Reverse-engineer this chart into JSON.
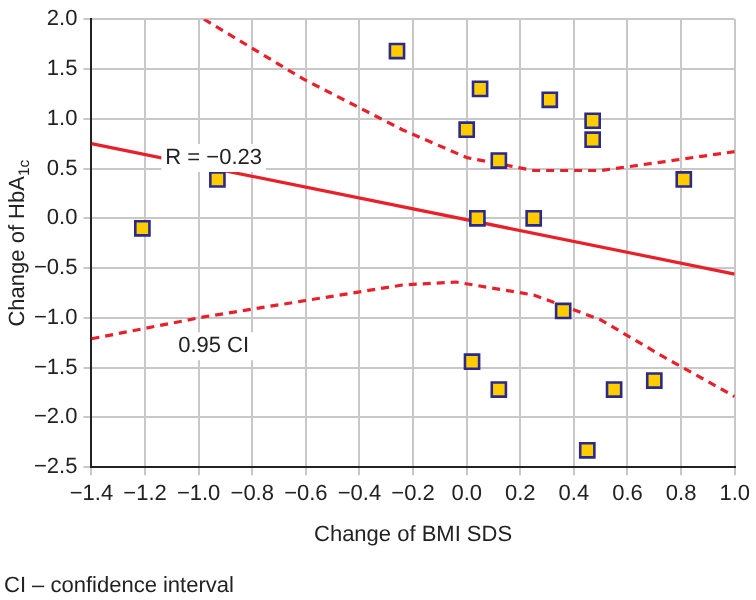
{
  "chart_data": {
    "type": "scatter",
    "xlabel": "Change of BMI SDS",
    "ylabel": "Change of HbA$_{1c}$",
    "xlim": [
      -1.4,
      1.0
    ],
    "xticks": [
      {
        "value": -1.4,
        "label": "−1.4"
      },
      {
        "value": -1.2,
        "label": "−1.2"
      },
      {
        "value": -1.0,
        "label": "−1.0"
      },
      {
        "value": -0.8,
        "label": "−0.8"
      },
      {
        "value": -0.6,
        "label": "−0.6"
      },
      {
        "value": -0.4,
        "label": "−0.4"
      },
      {
        "value": -0.2,
        "label": "−0.2"
      },
      {
        "value": 0,
        "label": "0.0"
      },
      {
        "value": 0.2,
        "label": "0.2"
      },
      {
        "value": 0.4,
        "label": "0.4"
      },
      {
        "value": 0.6,
        "label": "0.6"
      },
      {
        "value": 0.8,
        "label": "0.8"
      },
      {
        "value": 1,
        "label": "1.0"
      }
    ],
    "ylim": [
      -2.5,
      2.0
    ],
    "yticks": [
      {
        "value": -2.5,
        "label": "−2.5"
      },
      {
        "value": -2,
        "label": "−2.0"
      },
      {
        "value": -1.5,
        "label": "−1.5"
      },
      {
        "value": -1,
        "label": "−1.0"
      },
      {
        "value": -0.5,
        "label": "−0.5"
      },
      {
        "value": 0,
        "label": "0.0"
      },
      {
        "value": 0.5,
        "label": "0.5"
      },
      {
        "value": 1,
        "label": "1.0"
      },
      {
        "value": 1.5,
        "label": "1.5"
      },
      {
        "value": 2,
        "label": "2.0"
      }
    ],
    "grid": true,
    "legend": false,
    "series": [
      {
        "color": "#ffcc00",
        "marker": "square",
        "x": [
          -1.21,
          -0.93,
          -0.26,
          0.05,
          0.0,
          0.12,
          0.31,
          0.47,
          0.47,
          0.81,
          0.04,
          0.25,
          0.36,
          0.02,
          0.12,
          0.55,
          0.7,
          0.45
        ],
        "values": [
          -0.1,
          0.39,
          1.68,
          1.3,
          0.89,
          0.58,
          1.19,
          0.98,
          0.79,
          0.39,
          0.0,
          0.0,
          -0.93,
          -1.44,
          -1.72,
          -1.72,
          -1.63,
          -2.33
        ]
      },
      {
        "type": "line",
        "color": "#e8202a",
        "marker": "none",
        "line_style": "solid",
        "x": [
          -1.4,
          1.0
        ],
        "values": [
          0.75,
          -0.56
        ]
      },
      {
        "type": "line",
        "color": "#e8202a",
        "marker": "none",
        "line_style": "dashed",
        "x": [
          -0.98,
          -0.61,
          -0.24,
          0.0,
          0.25,
          0.5,
          0.74,
          1.0
        ],
        "values": [
          2.0,
          1.4,
          0.89,
          0.61,
          0.48,
          0.48,
          0.57,
          0.67
        ]
      },
      {
        "type": "line",
        "color": "#e8202a",
        "marker": "none",
        "line_style": "dashed",
        "x": [
          -1.4,
          -0.98,
          -0.61,
          -0.24,
          -0.04,
          0.25,
          0.5,
          0.74,
          1.0
        ],
        "values": [
          -1.21,
          -0.99,
          -0.83,
          -0.67,
          -0.64,
          -0.77,
          -1.02,
          -1.4,
          -1.79
        ]
      }
    ],
    "annotations": [
      "R = −0.23",
      "0.95 CI",
      "CI – confidence interval"
    ]
  }
}
